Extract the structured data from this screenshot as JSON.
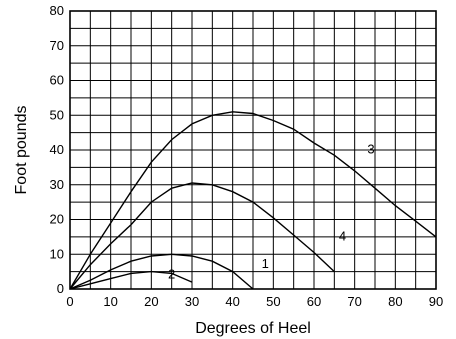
{
  "chart_data": {
    "type": "line",
    "title": "",
    "xlabel": "Degrees of Heel",
    "ylabel": "Foot pounds",
    "xlim": [
      0,
      90
    ],
    "ylim": [
      0,
      80
    ],
    "xticks": [
      0,
      10,
      20,
      30,
      40,
      50,
      60,
      70,
      80,
      90
    ],
    "yticks": [
      0,
      10,
      20,
      30,
      40,
      50,
      60,
      70,
      80
    ],
    "grid": true,
    "series": [
      {
        "name": "1",
        "points": [
          [
            0,
            0
          ],
          [
            5,
            2.5
          ],
          [
            10,
            5.5
          ],
          [
            15,
            8
          ],
          [
            20,
            9.5
          ],
          [
            25,
            10
          ],
          [
            30,
            9.5
          ],
          [
            35,
            8
          ],
          [
            40,
            5
          ],
          [
            45,
            0
          ]
        ]
      },
      {
        "name": "2",
        "points": [
          [
            0,
            0
          ],
          [
            5,
            1.5
          ],
          [
            10,
            3
          ],
          [
            15,
            4.5
          ],
          [
            20,
            5
          ],
          [
            25,
            4.5
          ],
          [
            30,
            2
          ]
        ]
      },
      {
        "name": "3",
        "points": [
          [
            0,
            0
          ],
          [
            5,
            10
          ],
          [
            10,
            19
          ],
          [
            15,
            28
          ],
          [
            20,
            36.5
          ],
          [
            25,
            43
          ],
          [
            30,
            47.5
          ],
          [
            35,
            50
          ],
          [
            40,
            51
          ],
          [
            45,
            50.5
          ],
          [
            50,
            48.5
          ],
          [
            55,
            46
          ],
          [
            60,
            42
          ],
          [
            65,
            38.5
          ],
          [
            70,
            34
          ],
          [
            75,
            29
          ],
          [
            80,
            24
          ],
          [
            85,
            19.5
          ],
          [
            90,
            15
          ]
        ]
      },
      {
        "name": "4",
        "points": [
          [
            0,
            0
          ],
          [
            5,
            7
          ],
          [
            10,
            13
          ],
          [
            15,
            18.5
          ],
          [
            20,
            25
          ],
          [
            25,
            29
          ],
          [
            30,
            30.5
          ],
          [
            35,
            30
          ],
          [
            40,
            28
          ],
          [
            45,
            25
          ],
          [
            50,
            20.5
          ],
          [
            55,
            15.5
          ],
          [
            60,
            10.5
          ],
          [
            65,
            5
          ]
        ]
      }
    ],
    "curve_labels": [
      "1",
      "2",
      "3",
      "4"
    ]
  }
}
